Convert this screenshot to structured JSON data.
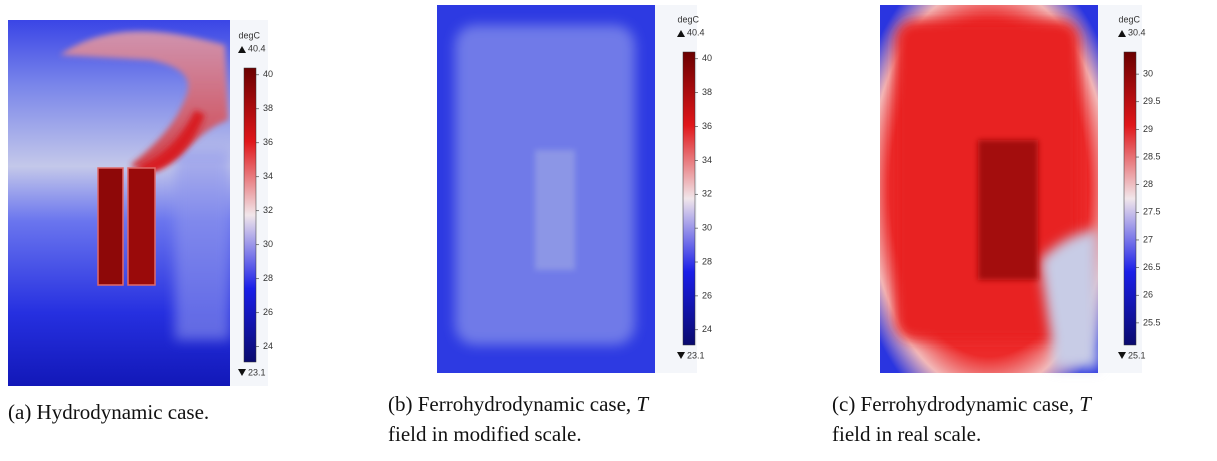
{
  "panels": [
    {
      "unit": "degC",
      "max": 40.4,
      "min": 23.1,
      "ticks": [
        40,
        38,
        36,
        34,
        32,
        30,
        28,
        26,
        24
      ],
      "caption": [
        "(a) Hydrodynamic case."
      ]
    },
    {
      "unit": "degC",
      "max": 40.4,
      "min": 23.1,
      "ticks": [
        40,
        38,
        36,
        34,
        32,
        30,
        28,
        26,
        24
      ],
      "caption": [
        "(b) Ferrohydrodynamic case, ",
        "T",
        "field in modified scale."
      ]
    },
    {
      "unit": "degC",
      "max": 30.4,
      "min": 25.1,
      "ticks": [
        30,
        29.5,
        29,
        28.5,
        28,
        27.5,
        27,
        26.5,
        26,
        25.5
      ],
      "caption": [
        "(c) Ferrohydrodynamic case, ",
        "T",
        "field in real scale."
      ]
    }
  ]
}
